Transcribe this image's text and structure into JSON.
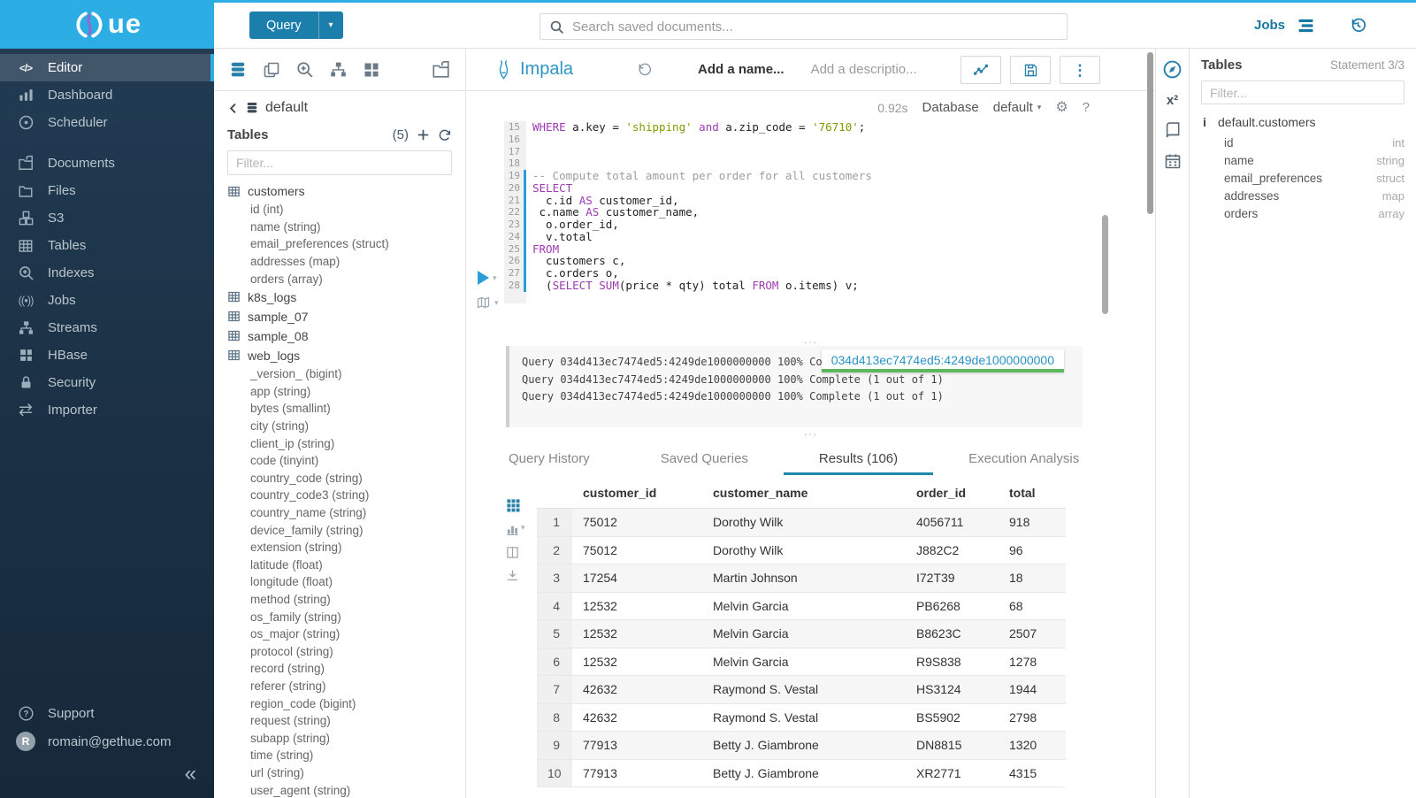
{
  "brand": {
    "logo_text": "ue"
  },
  "topbar": {
    "query_button": "Query",
    "search_placeholder": "Search saved documents...",
    "jobs_label": "Jobs"
  },
  "sidebar": {
    "items": [
      {
        "label": "Editor",
        "icon": "code-icon",
        "active": true
      },
      {
        "label": "Dashboard",
        "icon": "dashboard-icon"
      },
      {
        "label": "Scheduler",
        "icon": "scheduler-icon"
      },
      {
        "label": "Documents",
        "icon": "documents-icon",
        "gap": true
      },
      {
        "label": "Files",
        "icon": "files-icon"
      },
      {
        "label": "S3",
        "icon": "s3-icon"
      },
      {
        "label": "Tables",
        "icon": "tables-icon"
      },
      {
        "label": "Indexes",
        "icon": "indexes-icon"
      },
      {
        "label": "Jobs",
        "icon": "jobs-icon"
      },
      {
        "label": "Streams",
        "icon": "streams-icon"
      },
      {
        "label": "HBase",
        "icon": "hbase-icon"
      },
      {
        "label": "Security",
        "icon": "security-icon"
      },
      {
        "label": "Importer",
        "icon": "importer-icon"
      }
    ],
    "support_label": "Support",
    "user_initial": "R",
    "user_email": "romain@gethue.com"
  },
  "left_assist": {
    "breadcrumb": "default",
    "tables_label": "Tables",
    "tables_count": "(5)",
    "filter_placeholder": "Filter...",
    "tables": [
      {
        "name": "customers",
        "columns": [
          "id (int)",
          "name (string)",
          "email_preferences (struct)",
          "addresses (map)",
          "orders (array)"
        ]
      },
      {
        "name": "k8s_logs",
        "columns": []
      },
      {
        "name": "sample_07",
        "columns": []
      },
      {
        "name": "sample_08",
        "columns": []
      },
      {
        "name": "web_logs",
        "columns": [
          "_version_ (bigint)",
          "app (string)",
          "bytes (smallint)",
          "city (string)",
          "client_ip (string)",
          "code (tinyint)",
          "country_code (string)",
          "country_code3 (string)",
          "country_name (string)",
          "device_family (string)",
          "extension (string)",
          "latitude (float)",
          "longitude (float)",
          "method (string)",
          "os_family (string)",
          "os_major (string)",
          "protocol (string)",
          "record (string)",
          "referer (string)",
          "region_code (bigint)",
          "request (string)",
          "subapp (string)",
          "time (string)",
          "url (string)",
          "user_agent (string)"
        ]
      }
    ]
  },
  "editor": {
    "engine": "Impala",
    "name_placeholder": "Add a name...",
    "description_placeholder": "Add a descriptio...",
    "duration": "0.92s",
    "database_label": "Database",
    "database_value": "default",
    "first_line_number": 15,
    "active_statement_lines": [
      19,
      28
    ],
    "code_lines": [
      "WHERE a.key = 'shipping' and a.zip_code = '76710';",
      "",
      "",
      "",
      "-- Compute total amount per order for all customers",
      "SELECT",
      "  c.id AS customer_id,",
      " c.name AS customer_name,",
      "  o.order_id,",
      "  v.total",
      "FROM",
      "  customers c,",
      "  c.orders o,",
      "  (SELECT SUM(price * qty) total FROM o.items) v;"
    ]
  },
  "logs": {
    "lines": [
      "Query 034d413ec7474ed5:4249de1000000000 100% Complete (1 out of 1)",
      "Query 034d413ec7474ed5:4249de1000000000 100% Complete (1 out of 1)",
      "Query 034d413ec7474ed5:4249de1000000000 100% Complete (1 out of 1)"
    ],
    "job_badge": "034d413ec7474ed5:4249de1000000000"
  },
  "tabs": [
    {
      "label": "Query History",
      "active": false
    },
    {
      "label": "Saved Queries",
      "active": false
    },
    {
      "label": "Results (106)",
      "active": true
    },
    {
      "label": "Execution Analysis",
      "active": false
    }
  ],
  "results": {
    "columns": [
      "customer_id",
      "customer_name",
      "order_id",
      "total"
    ],
    "rows": [
      [
        "1",
        "75012",
        "Dorothy Wilk",
        "4056711",
        "918"
      ],
      [
        "2",
        "75012",
        "Dorothy Wilk",
        "J882C2",
        "96"
      ],
      [
        "3",
        "17254",
        "Martin Johnson",
        "I72T39",
        "18"
      ],
      [
        "4",
        "12532",
        "Melvin Garcia",
        "PB6268",
        "68"
      ],
      [
        "5",
        "12532",
        "Melvin Garcia",
        "B8623C",
        "2507"
      ],
      [
        "6",
        "12532",
        "Melvin Garcia",
        "R9S838",
        "1278"
      ],
      [
        "7",
        "42632",
        "Raymond S. Vestal",
        "HS3124",
        "1944"
      ],
      [
        "8",
        "42632",
        "Raymond S. Vestal",
        "BS5902",
        "2798"
      ],
      [
        "9",
        "77913",
        "Betty J. Giambrone",
        "DN8815",
        "1320"
      ],
      [
        "10",
        "77913",
        "Betty J. Giambrone",
        "XR2771",
        "4315"
      ]
    ]
  },
  "right_assist": {
    "tables_label": "Tables",
    "statement": "Statement 3/3",
    "filter_placeholder": "Filter...",
    "table_name": "default.customers",
    "columns": [
      {
        "name": "id",
        "type": "int"
      },
      {
        "name": "name",
        "type": "string"
      },
      {
        "name": "email_preferences",
        "type": "struct"
      },
      {
        "name": "addresses",
        "type": "map"
      },
      {
        "name": "orders",
        "type": "array"
      }
    ]
  },
  "colors": {
    "brand_cyan": "#2CADE4",
    "button_blue": "#1B7EAB",
    "link_blue": "#1677A3",
    "icon_blue": "#2980A9",
    "active_tab_underline": "#1E88A8",
    "badge_green": "#5CB85C",
    "keyword_purple": "#9C3BB0",
    "string_green": "#7D9A00"
  }
}
